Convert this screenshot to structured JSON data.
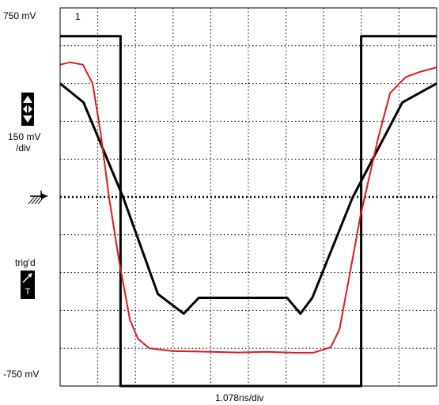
{
  "scope": {
    "top_label": "750 mV",
    "bottom_label": "-750 mV",
    "channel_number": "1",
    "vdiv_value": "150 mV",
    "vdiv_unit": "/div",
    "trigger_status": "trig'd",
    "trigger_badge": "T",
    "timebase": "1.078ns/div",
    "icons": {
      "vertical_adjust": "up-down-arrow-icon",
      "ground_marker": "ground-reference-icon",
      "trigger": "trigger-slope-icon"
    },
    "colors": {
      "mask": "#000000",
      "waveform": "#e0181e",
      "grid": "#000000"
    }
  },
  "chart_data": {
    "type": "line",
    "title": "",
    "xlabel": "1.078ns/div",
    "ylabel": "",
    "x_unit": "ns",
    "y_unit": "mV",
    "xlim": [
      0,
      10.78
    ],
    "ylim": [
      -750,
      750
    ],
    "divisions": {
      "x": 10,
      "y": 10
    },
    "grid": true,
    "series": [
      {
        "role": "mask-outer",
        "color": "#000000",
        "points": [
          [
            0,
            638
          ],
          [
            1.73,
            638
          ],
          [
            1.73,
            -750
          ],
          [
            8.62,
            -750
          ],
          [
            8.62,
            638
          ],
          [
            10.78,
            638
          ]
        ]
      },
      {
        "role": "mask-inner",
        "color": "#000000",
        "points": [
          [
            0,
            450
          ],
          [
            0.67,
            375
          ],
          [
            1.81,
            -3
          ],
          [
            2.8,
            -385
          ],
          [
            3.54,
            -463
          ],
          [
            3.97,
            -400
          ],
          [
            6.5,
            -400
          ],
          [
            6.88,
            -463
          ],
          [
            7.22,
            -400
          ],
          [
            8.37,
            -3
          ],
          [
            9.8,
            375
          ],
          [
            10.78,
            450
          ]
        ]
      },
      {
        "role": "waveform",
        "color": "#e0181e",
        "points": [
          [
            0,
            525
          ],
          [
            0.28,
            534
          ],
          [
            0.65,
            525
          ],
          [
            0.93,
            450
          ],
          [
            1.15,
            263
          ],
          [
            1.4,
            0
          ],
          [
            1.7,
            -263
          ],
          [
            2.0,
            -488
          ],
          [
            2.23,
            -563
          ],
          [
            2.55,
            -600
          ],
          [
            3.2,
            -611
          ],
          [
            4.3,
            -614
          ],
          [
            5.1,
            -617
          ],
          [
            5.9,
            -614
          ],
          [
            6.7,
            -618
          ],
          [
            7.25,
            -618
          ],
          [
            7.75,
            -596
          ],
          [
            8.0,
            -525
          ],
          [
            8.25,
            -338
          ],
          [
            8.6,
            -75
          ],
          [
            9.1,
            230
          ],
          [
            9.45,
            413
          ],
          [
            9.9,
            476
          ],
          [
            10.3,
            496
          ],
          [
            10.78,
            514
          ]
        ]
      }
    ]
  }
}
